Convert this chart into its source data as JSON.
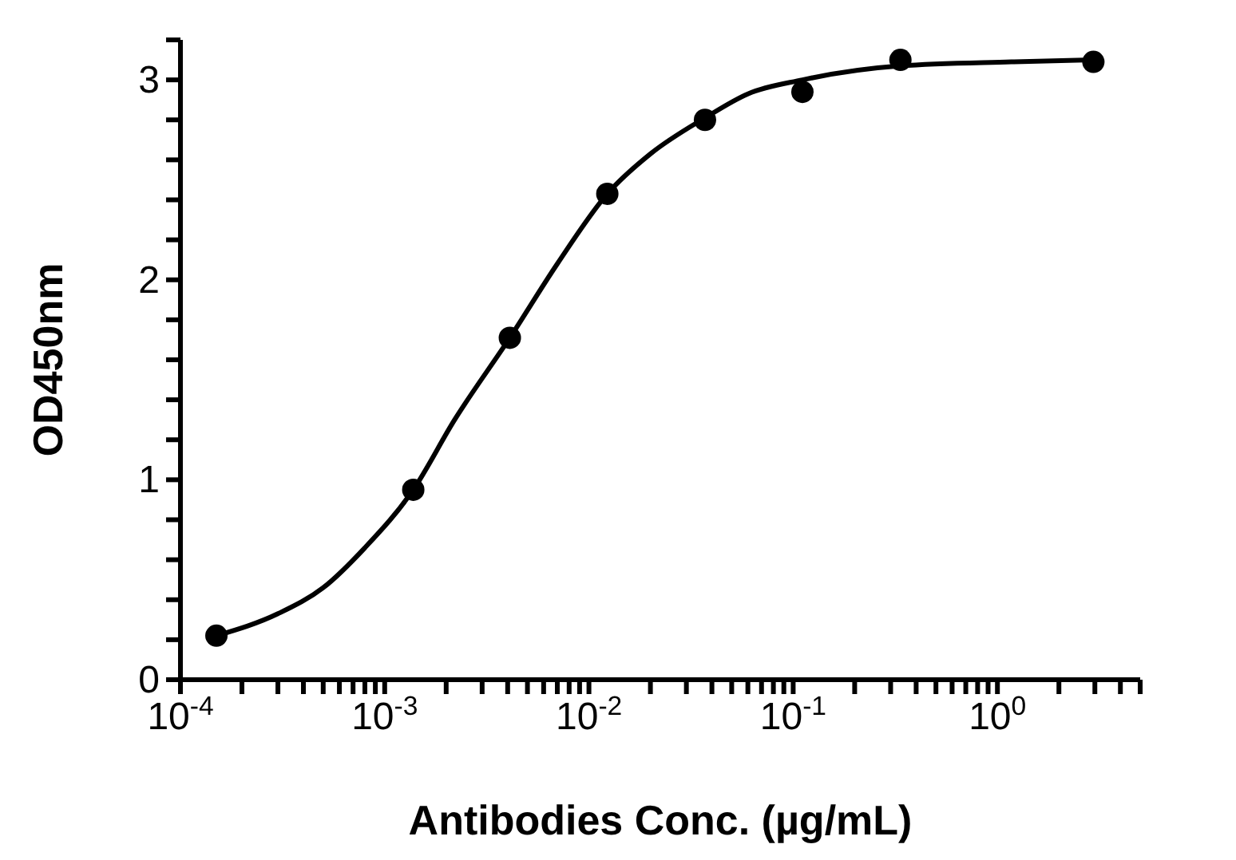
{
  "chart_data": {
    "type": "scatter",
    "xlabel": "Antibodies Conc. (µg/mL)",
    "ylabel": "OD450nm",
    "log": "x",
    "xlim": [
      0.0001,
      5
    ],
    "ylim": [
      0,
      3.2
    ],
    "xticks": [
      {
        "value": 0.0001,
        "label": "10$^{-4}$"
      },
      {
        "value": 0.0002,
        "label": null
      },
      {
        "value": 0.0003,
        "label": null
      },
      {
        "value": 0.0004,
        "label": null
      },
      {
        "value": 0.0005,
        "label": null
      },
      {
        "value": 0.0006,
        "label": null
      },
      {
        "value": 0.0007,
        "label": null
      },
      {
        "value": 0.0008,
        "label": null
      },
      {
        "value": 0.0009,
        "label": null
      },
      {
        "value": 0.001,
        "label": "10$^{-3}$"
      },
      {
        "value": 0.002,
        "label": null
      },
      {
        "value": 0.003,
        "label": null
      },
      {
        "value": 0.004,
        "label": null
      },
      {
        "value": 0.005,
        "label": null
      },
      {
        "value": 0.006,
        "label": null
      },
      {
        "value": 0.007,
        "label": null
      },
      {
        "value": 0.008,
        "label": null
      },
      {
        "value": 0.009,
        "label": null
      },
      {
        "value": 0.01,
        "label": "10$^{-2}$"
      },
      {
        "value": 0.02,
        "label": null
      },
      {
        "value": 0.03,
        "label": null
      },
      {
        "value": 0.04,
        "label": null
      },
      {
        "value": 0.05,
        "label": null
      },
      {
        "value": 0.06,
        "label": null
      },
      {
        "value": 0.07,
        "label": null
      },
      {
        "value": 0.08,
        "label": null
      },
      {
        "value": 0.09,
        "label": null
      },
      {
        "value": 0.1,
        "label": "10$^{-1}$"
      },
      {
        "value": 0.2,
        "label": null
      },
      {
        "value": 0.3,
        "label": null
      },
      {
        "value": 0.4,
        "label": null
      },
      {
        "value": 0.5,
        "label": null
      },
      {
        "value": 0.6,
        "label": null
      },
      {
        "value": 0.7,
        "label": null
      },
      {
        "value": 0.8,
        "label": null
      },
      {
        "value": 0.9,
        "label": null
      },
      {
        "value": 1,
        "label": "10$^{0}$"
      },
      {
        "value": 2,
        "label": null
      },
      {
        "value": 3,
        "label": null
      },
      {
        "value": 4,
        "label": null
      },
      {
        "value": 5,
        "label": null
      }
    ],
    "yticks": [
      0,
      {
        "value": 0.2,
        "label": null
      },
      {
        "value": 0.4,
        "label": null
      },
      {
        "value": 0.6,
        "label": null
      },
      {
        "value": 0.8,
        "label": null
      },
      1,
      {
        "value": 1.2,
        "label": null
      },
      {
        "value": 1.4,
        "label": null
      },
      {
        "value": 1.6,
        "label": null
      },
      {
        "value": 1.8,
        "label": null
      },
      2,
      {
        "value": 2.2,
        "label": null
      },
      {
        "value": 2.4,
        "label": null
      },
      {
        "value": 2.6,
        "label": null
      },
      {
        "value": 2.8,
        "label": null
      },
      3,
      {
        "value": 3.2,
        "label": null
      }
    ],
    "series": [
      {
        "marker": "circle",
        "color": "#000000",
        "x": [
          0.00015,
          0.00138,
          0.0041,
          0.0123,
          0.037,
          0.111,
          0.335,
          2.95
        ],
        "values": [
          0.22,
          0.95,
          1.71,
          2.43,
          2.8,
          2.94,
          3.1,
          3.09
        ]
      },
      {
        "type": "line",
        "marker": "none",
        "color": "#000000",
        "x": [
          0.00015,
          0.0003,
          0.0005,
          0.0008,
          0.00138,
          0.0022,
          0.0041,
          0.007,
          0.0123,
          0.02,
          0.037,
          0.06,
          0.111,
          0.335,
          1.17,
          2.95
        ],
        "values": [
          0.22,
          0.33,
          0.46,
          0.66,
          0.95,
          1.3,
          1.71,
          2.08,
          2.43,
          2.63,
          2.81,
          2.93,
          3.0,
          3.07,
          3.09,
          3.1
        ]
      }
    ]
  }
}
